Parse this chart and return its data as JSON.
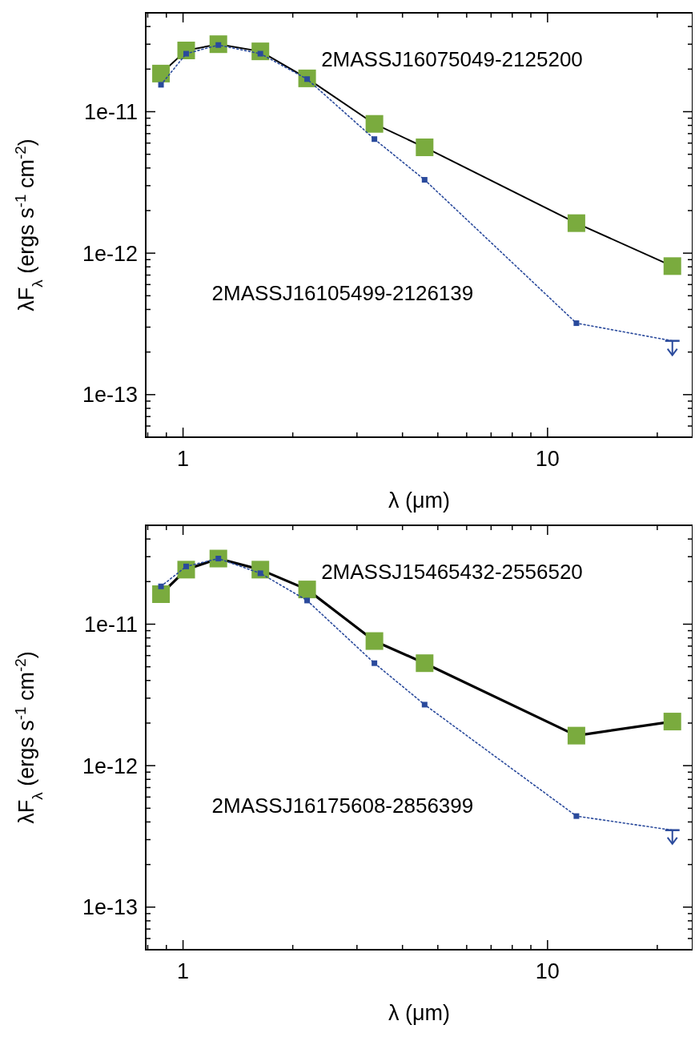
{
  "chart_data": [
    {
      "type": "line",
      "xlabel": "λ (μm)",
      "ylabel": "λF$_{λ}$ (ergs s$^{-1}$ cm$^{-2}$)",
      "log": "xy",
      "grid": false,
      "marker": "square",
      "x": [
        0.87,
        1.02,
        1.25,
        1.63,
        2.19,
        3.35,
        4.6,
        12,
        22
      ],
      "xlim": [
        0.79,
        25
      ],
      "xticks": [
        {
          "value": 0.8,
          "label": null
        },
        {
          "value": 0.9,
          "label": null
        },
        {
          "value": 1,
          "label": "1"
        },
        {
          "value": 2,
          "label": null
        },
        {
          "value": 3,
          "label": null
        },
        {
          "value": 4,
          "label": null
        },
        {
          "value": 5,
          "label": null
        },
        {
          "value": 6,
          "label": null
        },
        {
          "value": 7,
          "label": null
        },
        {
          "value": 8,
          "label": null
        },
        {
          "value": 9,
          "label": null
        },
        {
          "value": 10,
          "label": "10"
        },
        {
          "value": 20,
          "label": null
        }
      ],
      "ylim": [
        5e-14,
        5e-11
      ],
      "yticks": [
        {
          "value": 6e-14,
          "label": null
        },
        {
          "value": 7e-14,
          "label": null
        },
        {
          "value": 8e-14,
          "label": null
        },
        {
          "value": 9e-14,
          "label": null
        },
        {
          "value": 1e-13,
          "label": "1e-13"
        },
        {
          "value": 2e-13,
          "label": null
        },
        {
          "value": 3e-13,
          "label": null
        },
        {
          "value": 4e-13,
          "label": null
        },
        {
          "value": 5e-13,
          "label": null
        },
        {
          "value": 6e-13,
          "label": null
        },
        {
          "value": 7e-13,
          "label": null
        },
        {
          "value": 8e-13,
          "label": null
        },
        {
          "value": 9e-13,
          "label": null
        },
        {
          "value": 1e-12,
          "label": "1e-12"
        },
        {
          "value": 2e-12,
          "label": null
        },
        {
          "value": 3e-12,
          "label": null
        },
        {
          "value": 4e-12,
          "label": null
        },
        {
          "value": 5e-12,
          "label": null
        },
        {
          "value": 6e-12,
          "label": null
        },
        {
          "value": 7e-12,
          "label": null
        },
        {
          "value": 8e-12,
          "label": null
        },
        {
          "value": 9e-12,
          "label": null
        },
        {
          "value": 1e-11,
          "label": "1e-11"
        },
        {
          "value": 2e-11,
          "label": null
        },
        {
          "value": 3e-11,
          "label": null
        },
        {
          "value": 4e-11,
          "label": null
        }
      ],
      "series": [
        {
          "name": "2MASSJ16075049-2125200",
          "color": "#7aab3e",
          "line_style": "solid",
          "values": [
            1.86e-11,
            2.71e-11,
            3e-11,
            2.67e-11,
            1.72e-11,
            8.2e-12,
            5.6e-12,
            1.63e-12,
            8.1e-13
          ]
        },
        {
          "name": "2MASSJ16105499-2126139",
          "color": "#2a4a9c",
          "line_style": "dotted",
          "values": [
            1.55e-11,
            2.57e-11,
            2.96e-11,
            2.57e-11,
            1.7e-11,
            6.4e-12,
            3.3e-12,
            3.2e-13,
            2.4e-13
          ],
          "errors": [
            null,
            null,
            null,
            null,
            null,
            null,
            null,
            null,
            [
              1.9e-13,
              2.4e-13
            ]
          ]
        }
      ]
    },
    {
      "type": "line",
      "xlabel": "λ (μm)",
      "ylabel": "λF$_{λ}$ (ergs s$^{-1}$ cm$^{-2}$)",
      "log": "xy",
      "grid": false,
      "marker": "square",
      "x": [
        0.87,
        1.02,
        1.25,
        1.63,
        2.19,
        3.35,
        4.6,
        12,
        22
      ],
      "xlim": [
        0.79,
        25
      ],
      "xticks": [
        {
          "value": 0.8,
          "label": null
        },
        {
          "value": 0.9,
          "label": null
        },
        {
          "value": 1,
          "label": "1"
        },
        {
          "value": 2,
          "label": null
        },
        {
          "value": 3,
          "label": null
        },
        {
          "value": 4,
          "label": null
        },
        {
          "value": 5,
          "label": null
        },
        {
          "value": 6,
          "label": null
        },
        {
          "value": 7,
          "label": null
        },
        {
          "value": 8,
          "label": null
        },
        {
          "value": 9,
          "label": null
        },
        {
          "value": 10,
          "label": "10"
        },
        {
          "value": 20,
          "label": null
        }
      ],
      "ylim": [
        5e-14,
        5e-11
      ],
      "yticks": [
        {
          "value": 6e-14,
          "label": null
        },
        {
          "value": 7e-14,
          "label": null
        },
        {
          "value": 8e-14,
          "label": null
        },
        {
          "value": 9e-14,
          "label": null
        },
        {
          "value": 1e-13,
          "label": "1e-13"
        },
        {
          "value": 2e-13,
          "label": null
        },
        {
          "value": 3e-13,
          "label": null
        },
        {
          "value": 4e-13,
          "label": null
        },
        {
          "value": 5e-13,
          "label": null
        },
        {
          "value": 6e-13,
          "label": null
        },
        {
          "value": 7e-13,
          "label": null
        },
        {
          "value": 8e-13,
          "label": null
        },
        {
          "value": 9e-13,
          "label": null
        },
        {
          "value": 1e-12,
          "label": "1e-12"
        },
        {
          "value": 2e-12,
          "label": null
        },
        {
          "value": 3e-12,
          "label": null
        },
        {
          "value": 4e-12,
          "label": null
        },
        {
          "value": 5e-12,
          "label": null
        },
        {
          "value": 6e-12,
          "label": null
        },
        {
          "value": 7e-12,
          "label": null
        },
        {
          "value": 8e-12,
          "label": null
        },
        {
          "value": 9e-12,
          "label": null
        },
        {
          "value": 1e-11,
          "label": "1e-11"
        },
        {
          "value": 2e-11,
          "label": null
        },
        {
          "value": 3e-11,
          "label": null
        },
        {
          "value": 4e-11,
          "label": null
        }
      ],
      "series": [
        {
          "name": "2MASSJ15465432-2556520",
          "color": "#7aab3e",
          "line_style": "solid",
          "values": [
            1.63e-11,
            2.43e-11,
            2.91e-11,
            2.43e-11,
            1.76e-11,
            7.6e-12,
            5.3e-12,
            1.63e-12,
            2.05e-12
          ]
        },
        {
          "name": "2MASSJ16175608-2856399",
          "color": "#2a4a9c",
          "line_style": "dotted",
          "values": [
            1.85e-11,
            2.56e-11,
            2.91e-11,
            2.29e-11,
            1.47e-11,
            5.3e-12,
            2.7e-12,
            4.4e-13,
            3.5e-13
          ],
          "errors": [
            null,
            null,
            null,
            null,
            null,
            null,
            null,
            null,
            [
              2.8e-13,
              3.5e-13
            ]
          ]
        }
      ]
    }
  ]
}
